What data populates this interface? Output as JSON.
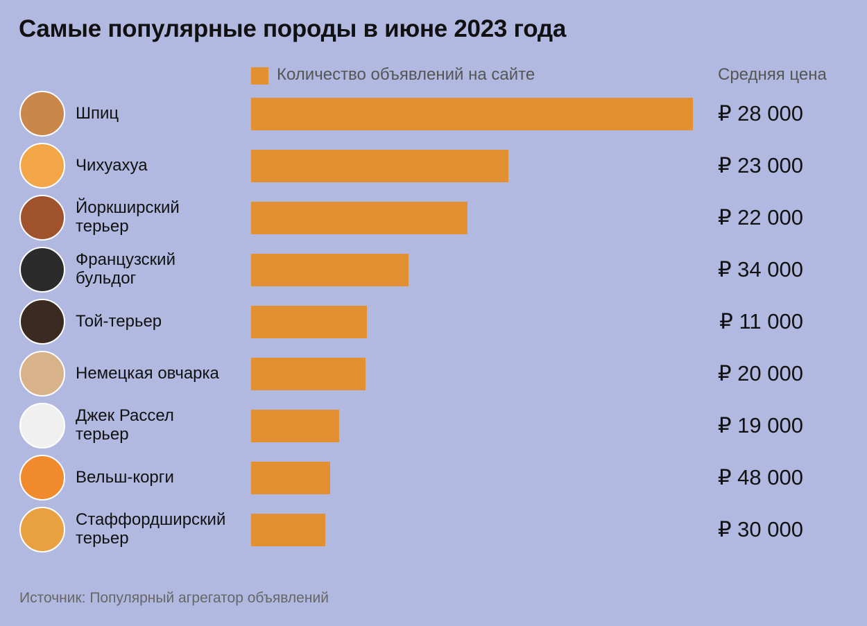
{
  "chart_data": {
    "type": "bar",
    "orientation": "horizontal",
    "title": "Самые популярные породы в июне 2023 года",
    "categories": [
      "Шпиц",
      "Чихуахуа",
      "Йоркширский\nтерьер",
      "Французский\nбульдог",
      "Той-терьер",
      "Немецкая овчарка",
      "Джек Рассел\nтерьер",
      "Вельш-корги",
      "Стаффордширский\nтерьер"
    ],
    "series": [
      {
        "name": "Количество объявлений на сайте",
        "color": "#e39032",
        "values": [
          637,
          371,
          312,
          227,
          167,
          165,
          127,
          114,
          107
        ]
      }
    ],
    "price_header": "Средняя цена",
    "prices": [
      "₽ 28 000",
      "₽ 23 000",
      "₽ 22 000",
      "₽ 34 000",
      "₽ 11 000",
      "₽ 20 000",
      "₽ 19 000",
      "₽ 48 000",
      "₽ 30 000"
    ],
    "source": "Источник: Популярный агрегатор объявлений"
  }
}
